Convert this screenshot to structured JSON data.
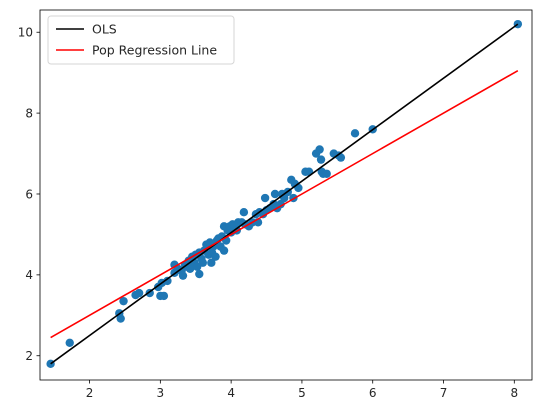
{
  "chart_data": {
    "type": "scatter",
    "title": "",
    "xlabel": "",
    "ylabel": "",
    "xlim": [
      1.3,
      8.25
    ],
    "ylim": [
      1.4,
      10.55
    ],
    "xticks": [
      2,
      3,
      4,
      5,
      6,
      7,
      8
    ],
    "yticks": [
      2,
      4,
      6,
      8,
      10
    ],
    "grid": false,
    "legend_position": "top-left",
    "series": [
      {
        "name": "",
        "kind": "scatter",
        "color": "#1f77b4",
        "points": [
          [
            1.45,
            1.8
          ],
          [
            1.72,
            2.32
          ],
          [
            2.42,
            3.05
          ],
          [
            2.44,
            2.92
          ],
          [
            2.48,
            3.35
          ],
          [
            2.65,
            3.5
          ],
          [
            2.7,
            3.55
          ],
          [
            2.85,
            3.55
          ],
          [
            2.97,
            3.7
          ],
          [
            3.0,
            3.48
          ],
          [
            3.05,
            3.48
          ],
          [
            3.02,
            3.8
          ],
          [
            3.1,
            3.85
          ],
          [
            3.2,
            4.05
          ],
          [
            3.2,
            4.25
          ],
          [
            3.25,
            4.15
          ],
          [
            3.3,
            4.1
          ],
          [
            3.32,
            3.98
          ],
          [
            3.35,
            4.25
          ],
          [
            3.38,
            4.2
          ],
          [
            3.4,
            4.35
          ],
          [
            3.42,
            4.15
          ],
          [
            3.45,
            4.45
          ],
          [
            3.48,
            4.3
          ],
          [
            3.5,
            4.5
          ],
          [
            3.52,
            4.2
          ],
          [
            3.55,
            4.02
          ],
          [
            3.55,
            4.55
          ],
          [
            3.58,
            4.4
          ],
          [
            3.6,
            4.3
          ],
          [
            3.62,
            4.6
          ],
          [
            3.65,
            4.75
          ],
          [
            3.68,
            4.5
          ],
          [
            3.7,
            4.8
          ],
          [
            3.72,
            4.3
          ],
          [
            3.73,
            4.55
          ],
          [
            3.75,
            4.7
          ],
          [
            3.78,
            4.45
          ],
          [
            3.8,
            4.85
          ],
          [
            3.82,
            4.9
          ],
          [
            3.85,
            4.7
          ],
          [
            3.87,
            4.95
          ],
          [
            3.9,
            5.2
          ],
          [
            3.9,
            4.6
          ],
          [
            3.93,
            4.85
          ],
          [
            3.95,
            5.1
          ],
          [
            3.98,
            5.2
          ],
          [
            4.0,
            5.05
          ],
          [
            4.02,
            5.25
          ],
          [
            4.05,
            5.2
          ],
          [
            4.08,
            5.1
          ],
          [
            4.1,
            5.3
          ],
          [
            4.15,
            5.3
          ],
          [
            4.18,
            5.55
          ],
          [
            4.2,
            5.25
          ],
          [
            4.25,
            5.2
          ],
          [
            4.3,
            5.3
          ],
          [
            4.35,
            5.5
          ],
          [
            4.38,
            5.3
          ],
          [
            4.4,
            5.55
          ],
          [
            4.45,
            5.5
          ],
          [
            4.48,
            5.9
          ],
          [
            4.5,
            5.6
          ],
          [
            4.55,
            5.65
          ],
          [
            4.6,
            5.75
          ],
          [
            4.62,
            6.0
          ],
          [
            4.65,
            5.65
          ],
          [
            4.7,
            5.75
          ],
          [
            4.72,
            6.0
          ],
          [
            4.75,
            5.9
          ],
          [
            4.8,
            6.05
          ],
          [
            4.85,
            6.35
          ],
          [
            4.88,
            5.9
          ],
          [
            4.9,
            6.25
          ],
          [
            4.95,
            6.15
          ],
          [
            5.05,
            6.55
          ],
          [
            5.1,
            6.55
          ],
          [
            5.2,
            7.0
          ],
          [
            5.25,
            7.1
          ],
          [
            5.27,
            6.85
          ],
          [
            5.28,
            6.55
          ],
          [
            5.3,
            6.5
          ],
          [
            5.35,
            6.5
          ],
          [
            5.45,
            7.0
          ],
          [
            5.52,
            6.95
          ],
          [
            5.55,
            6.9
          ],
          [
            5.75,
            7.5
          ],
          [
            6.0,
            7.6
          ],
          [
            8.05,
            10.2
          ]
        ]
      },
      {
        "name": "OLS",
        "kind": "line",
        "color": "#000000",
        "points": [
          [
            1.45,
            1.8
          ],
          [
            8.05,
            10.2
          ]
        ]
      },
      {
        "name": "Pop Regression Line",
        "kind": "line",
        "color": "#ff0000",
        "points": [
          [
            1.45,
            2.45
          ],
          [
            8.05,
            9.05
          ]
        ]
      }
    ]
  }
}
